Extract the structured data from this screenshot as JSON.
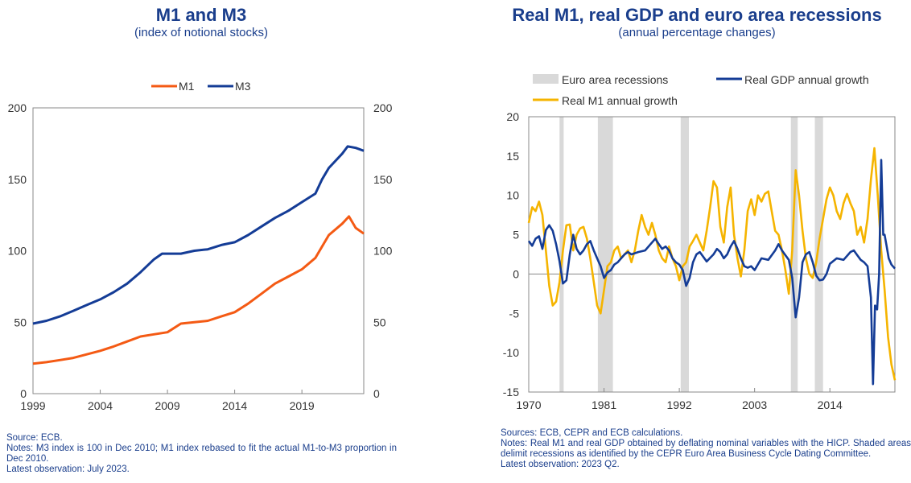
{
  "chart_data": [
    {
      "type": "line",
      "title": "M1 and M3",
      "subtitle": "(index of notional stocks)",
      "xlim": [
        1999,
        2023.6
      ],
      "ylim": [
        0,
        200
      ],
      "yticks": [
        0,
        50,
        100,
        150,
        200
      ],
      "xticks": [
        1999,
        2004,
        2009,
        2014,
        2019
      ],
      "legend": [
        "M1",
        "M3"
      ],
      "colors": {
        "M1": "#f45a14",
        "M3": "#143c96"
      },
      "series": [
        {
          "name": "M1",
          "x": [
            1999,
            2000,
            2001,
            2002,
            2003,
            2004,
            2005,
            2006,
            2007,
            2008,
            2009,
            2010,
            2011,
            2012,
            2013,
            2014,
            2015,
            2016,
            2017,
            2018,
            2019,
            2020,
            2020.5,
            2021,
            2022,
            2022.5,
            2023,
            2023.6
          ],
          "values": [
            21,
            22,
            23.5,
            25,
            27.5,
            30,
            33,
            36.5,
            40,
            41.5,
            43,
            49,
            50,
            51,
            54,
            57,
            63,
            70,
            77,
            82,
            87,
            95,
            103,
            111,
            119,
            124,
            116,
            112
          ]
        },
        {
          "name": "M3",
          "x": [
            1999,
            2000,
            2001,
            2002,
            2003,
            2004,
            2005,
            2006,
            2007,
            2008,
            2008.6,
            2009,
            2010,
            2011,
            2012,
            2013,
            2014,
            2015,
            2016,
            2017,
            2018,
            2019,
            2020,
            2020.5,
            2021,
            2022,
            2022.4,
            2023,
            2023.6
          ],
          "values": [
            49,
            51,
            54,
            58,
            62,
            66,
            71,
            77,
            85,
            94,
            98,
            98,
            98,
            100,
            101,
            104,
            106,
            111,
            117,
            123,
            128,
            134,
            140,
            150,
            158,
            168,
            173,
            172,
            170
          ]
        }
      ],
      "source": "Source: ECB.",
      "notes": "Notes: M3 index is 100 in Dec 2010; M1 index rebased to fit the actual M1-to-M3 proportion in Dec 2010.",
      "latest": "Latest observation: July 2023."
    },
    {
      "type": "line",
      "title": "Real M1, real GDP and euro area recessions",
      "subtitle": "(annual percentage changes)",
      "xlim": [
        1970,
        2023.5
      ],
      "ylim": [
        -15,
        20
      ],
      "yticks": [
        -15,
        -10,
        -5,
        0,
        5,
        10,
        15,
        20
      ],
      "xticks": [
        1970,
        1981,
        1992,
        2003,
        2014
      ],
      "legend": [
        "Euro area recessions",
        "Real GDP annual growth",
        "Real M1 annual growth"
      ],
      "colors": {
        "recession": "#d9d9d9",
        "gdp": "#143c96",
        "m1": "#f5b400"
      },
      "recessions": [
        [
          1974.5,
          1975.1
        ],
        [
          1980.1,
          1982.3
        ],
        [
          1992.2,
          1993.4
        ],
        [
          2008.3,
          2009.3
        ],
        [
          2011.8,
          2013.0
        ]
      ],
      "series": [
        {
          "name": "Real GDP annual growth",
          "x": [
            1970,
            1970.5,
            1971,
            1971.5,
            1972,
            1972.5,
            1973,
            1973.5,
            1974,
            1974.5,
            1975,
            1975.5,
            1976,
            1976.5,
            1977,
            1977.5,
            1978,
            1978.5,
            1979,
            1979.5,
            1980,
            1980.5,
            1981,
            1981.5,
            1982,
            1982.5,
            1983,
            1983.5,
            1984,
            1984.5,
            1985,
            1986,
            1987,
            1988,
            1988.5,
            1989,
            1989.5,
            1990,
            1990.5,
            1991,
            1991.5,
            1992,
            1992.5,
            1993,
            1993.5,
            1994,
            1994.5,
            1995,
            1996,
            1997,
            1997.5,
            1998,
            1998.5,
            1999,
            1999.5,
            2000,
            2000.5,
            2001,
            2001.5,
            2002,
            2002.5,
            2003,
            2004,
            2005,
            2006,
            2006.5,
            2007,
            2007.5,
            2008,
            2008.5,
            2009,
            2009.5,
            2010,
            2010.5,
            2011,
            2011.5,
            2012,
            2012.5,
            2013,
            2013.5,
            2014,
            2015,
            2016,
            2017,
            2017.5,
            2018,
            2018.5,
            2019,
            2019.5,
            2020,
            2020.3,
            2020.6,
            2020.9,
            2021.2,
            2021.5,
            2021.8,
            2022,
            2022.3,
            2022.6,
            2023,
            2023.5
          ],
          "values": [
            4.2,
            3.6,
            4.5,
            4.8,
            3.2,
            5.6,
            6.2,
            5.5,
            3.8,
            1.6,
            -1.2,
            -0.8,
            2.5,
            5,
            3.2,
            2.5,
            3.0,
            3.8,
            4.2,
            3.0,
            2.0,
            1.0,
            -0.5,
            0.2,
            0.5,
            1.2,
            1.5,
            2.0,
            2.5,
            2.8,
            2.5,
            2.8,
            3.0,
            4.0,
            4.5,
            3.8,
            3.2,
            3.5,
            3.0,
            2.0,
            1.5,
            1.2,
            0.5,
            -1.5,
            -0.5,
            1.5,
            2.5,
            2.8,
            1.6,
            2.5,
            3.2,
            2.8,
            2.0,
            2.5,
            3.5,
            4.2,
            3.2,
            2.0,
            1.0,
            0.8,
            1.0,
            0.5,
            2.0,
            1.8,
            3.0,
            3.8,
            3.0,
            2.4,
            1.8,
            -0.5,
            -5.5,
            -3.0,
            1.5,
            2.5,
            2.8,
            1.5,
            -0.2,
            -0.8,
            -0.7,
            0.0,
            1.3,
            2.0,
            1.8,
            2.8,
            3.0,
            2.4,
            1.8,
            1.5,
            1.0,
            -3.0,
            -14,
            -4.0,
            -4.5,
            0,
            14.5,
            5.0,
            5.0,
            3.5,
            2.0,
            1.2,
            0.7
          ]
        },
        {
          "name": "Real M1 annual growth",
          "x": [
            1970,
            1970.5,
            1971,
            1971.5,
            1972,
            1972.5,
            1973,
            1973.5,
            1974,
            1974.5,
            1975,
            1975.5,
            1976,
            1976.5,
            1977,
            1977.5,
            1978,
            1978.5,
            1979,
            1979.5,
            1980,
            1980.5,
            1981,
            1981.5,
            1982,
            1982.5,
            1983,
            1983.5,
            1984,
            1984.5,
            1985,
            1985.5,
            1986,
            1986.5,
            1987,
            1987.5,
            1988,
            1988.5,
            1989,
            1989.5,
            1990,
            1990.5,
            1991,
            1991.5,
            1992,
            1992.5,
            1993,
            1993.5,
            1994,
            1994.5,
            1995,
            1995.5,
            1996,
            1996.5,
            1997,
            1997.5,
            1998,
            1998.5,
            1999,
            1999.5,
            2000,
            2000.5,
            2001,
            2001.5,
            2002,
            2002.5,
            2003,
            2003.5,
            2004,
            2004.5,
            2005,
            2005.5,
            2006,
            2006.5,
            2007,
            2007.5,
            2008,
            2008.5,
            2009,
            2009.5,
            2010,
            2010.5,
            2011,
            2011.5,
            2012,
            2012.5,
            2013,
            2013.5,
            2014,
            2014.5,
            2015,
            2015.5,
            2016,
            2016.5,
            2017,
            2017.5,
            2018,
            2018.5,
            2019,
            2019.5,
            2020,
            2020.5,
            2021,
            2021.5,
            2022,
            2022.5,
            2023,
            2023.5
          ],
          "values": [
            6.5,
            8.5,
            8.0,
            9.2,
            7.5,
            3.0,
            -1.5,
            -4.0,
            -3.5,
            -1.0,
            3.0,
            6.2,
            6.3,
            3.0,
            5.0,
            5.8,
            6.0,
            4.5,
            2.0,
            -1.0,
            -4.0,
            -5.0,
            -2.0,
            1.0,
            1.5,
            3.0,
            3.5,
            2.0,
            2.5,
            3.0,
            1.5,
            3.0,
            5.5,
            7.5,
            6.0,
            5.0,
            6.5,
            5.0,
            3.0,
            2.0,
            1.5,
            3.5,
            2.0,
            1.0,
            -0.8,
            1.0,
            1.5,
            3.5,
            4.2,
            5.0,
            4.0,
            3.0,
            5.5,
            8.5,
            11.8,
            11.0,
            6.0,
            4.0,
            8.5,
            11.0,
            5.0,
            2.0,
            -0.3,
            3.0,
            8.0,
            9.5,
            7.5,
            10.0,
            9.2,
            10.2,
            10.5,
            8.0,
            5.5,
            5.0,
            3.0,
            0.5,
            -2.5,
            3.0,
            13.2,
            10.0,
            5.5,
            2.0,
            0.0,
            -0.5,
            1.5,
            4.5,
            7.0,
            9.5,
            11.0,
            10.0,
            8.0,
            7.0,
            9.0,
            10.2,
            9.0,
            8.0,
            5.0,
            6.0,
            4.0,
            7.0,
            12.0,
            16.0,
            10.0,
            3.0,
            -2.0,
            -8.0,
            -11.5,
            -13.5
          ]
        }
      ],
      "source": "Sources: ECB, CEPR and ECB calculations.",
      "notes": "Notes: Real M1 and real GDP obtained by deflating nominal variables with the HICP. Shaded areas delimit recessions as identified by the CEPR Euro Area Business Cycle Dating Committee.",
      "latest": "Latest observation: 2023 Q2."
    }
  ]
}
